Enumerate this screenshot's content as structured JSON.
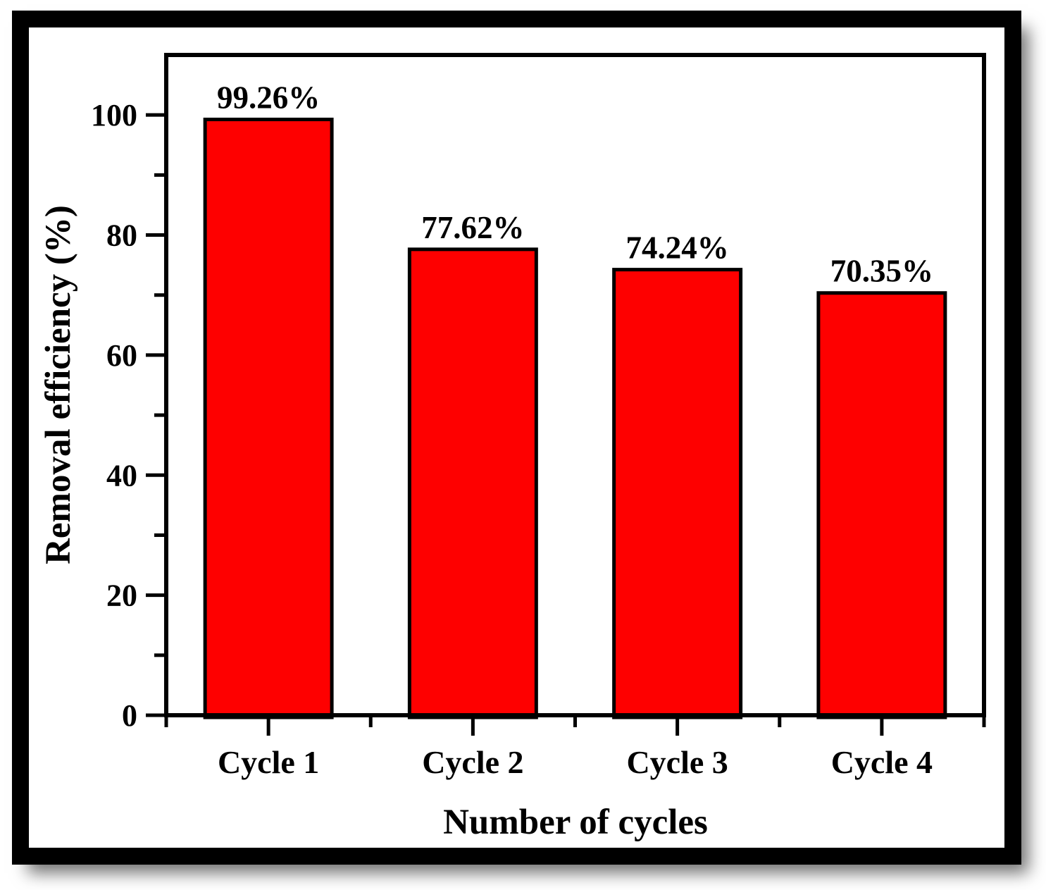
{
  "figure": {
    "background_color": "#ffffff",
    "frame_color": "#000000",
    "shadow_color": "#9a9a9a"
  },
  "chart_data": {
    "type": "bar",
    "title": "",
    "categories": [
      "Cycle 1",
      "Cycle 2",
      "Cycle 3",
      "Cycle 4"
    ],
    "values": [
      99.26,
      77.62,
      74.24,
      70.35
    ],
    "bar_labels": [
      "99.26%",
      "77.62%",
      "74.24%",
      "70.35%"
    ],
    "xlabel": "Number of cycles",
    "ylabel": "Removal efficiency (%)",
    "ylim": [
      0,
      110
    ],
    "yticks": [
      0,
      20,
      40,
      60,
      80,
      100
    ],
    "minor_y_step": 10,
    "grid": false,
    "legend": false,
    "bar_color": "#fe0000",
    "bar_edge_color": "#000000",
    "axis_color": "#000000",
    "bar_width_fraction": 0.62
  }
}
